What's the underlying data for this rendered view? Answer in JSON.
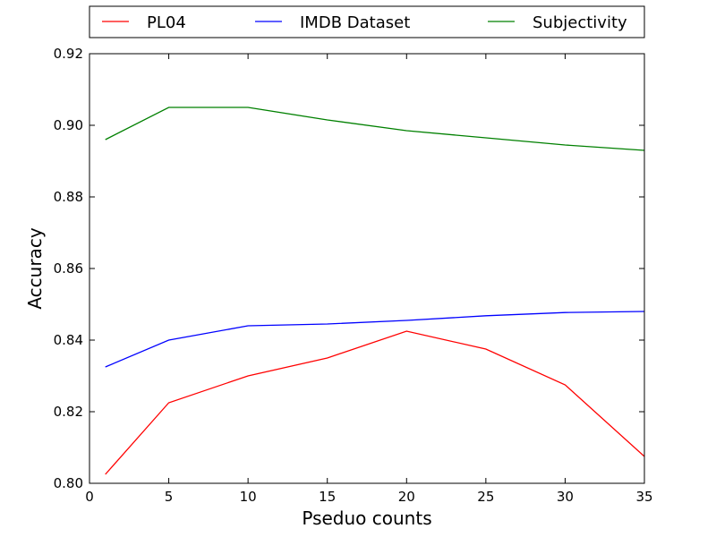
{
  "chart_data": {
    "type": "line",
    "title": "",
    "xlabel": "Pseduo counts",
    "ylabel": "Accuracy",
    "xlim": [
      0,
      35
    ],
    "ylim": [
      0.8,
      0.92
    ],
    "x_ticks": [
      "0",
      "5",
      "10",
      "15",
      "20",
      "25",
      "30",
      "35"
    ],
    "y_ticks": [
      "0.80",
      "0.82",
      "0.84",
      "0.86",
      "0.88",
      "0.90",
      "0.92"
    ],
    "grid": false,
    "legend_position": "top, outside plot, horizontal",
    "series": [
      {
        "name": "PL04",
        "color": "#ff0000",
        "x": [
          1,
          5,
          10,
          15,
          20,
          25,
          30,
          35
        ],
        "y": [
          0.8025,
          0.8225,
          0.83,
          0.835,
          0.8425,
          0.8375,
          0.8275,
          0.8075
        ]
      },
      {
        "name": "IMDB Dataset",
        "color": "#0000ff",
        "x": [
          1,
          5,
          10,
          15,
          20,
          25,
          30,
          35
        ],
        "y": [
          0.8325,
          0.84,
          0.844,
          0.8445,
          0.8455,
          0.8468,
          0.8477,
          0.848
        ]
      },
      {
        "name": "Subjectivity",
        "color": "#008000",
        "x": [
          1,
          5,
          10,
          15,
          20,
          25,
          30,
          35
        ],
        "y": [
          0.896,
          0.905,
          0.905,
          0.9015,
          0.8985,
          0.8965,
          0.8945,
          0.893
        ]
      }
    ]
  }
}
